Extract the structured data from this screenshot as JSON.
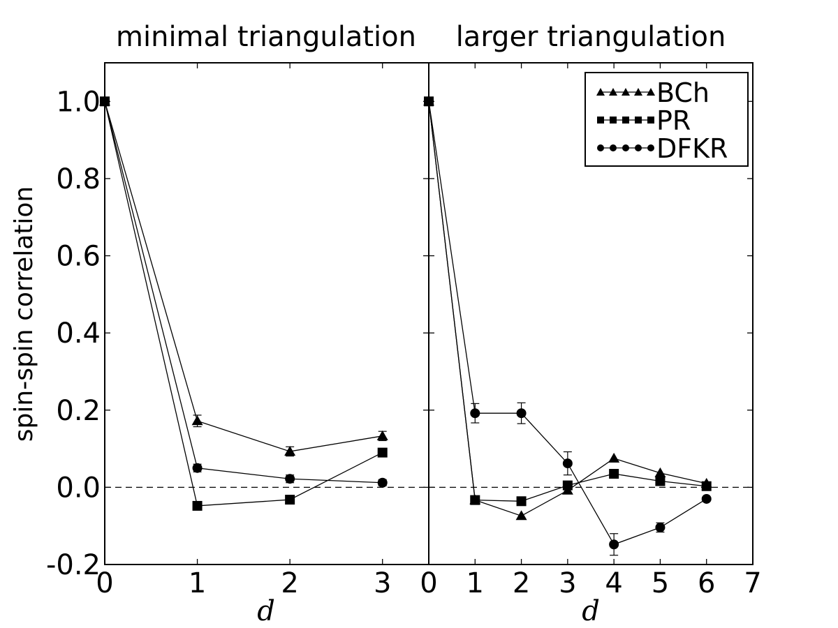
{
  "chart_data": [
    {
      "type": "line",
      "title": "minimal triangulation",
      "xlabel": "d",
      "ylabel": "spin-spin correlation",
      "xlim": [
        0,
        3.5
      ],
      "ylim": [
        -0.2,
        1.1
      ],
      "xticks": [
        "0",
        "1",
        "2",
        "3"
      ],
      "yticks": [
        "-0.2",
        "0.0",
        "0.2",
        "0.4",
        "0.6",
        "0.8",
        "1.0"
      ],
      "reference_line": {
        "y": 0.0,
        "style": "dashed"
      },
      "series": [
        {
          "name": "BCh",
          "marker": "triangle",
          "x": [
            0,
            1,
            2,
            3
          ],
          "y": [
            1.0,
            0.172,
            0.093,
            0.133
          ],
          "err": [
            0,
            0.015,
            0.012,
            0.012
          ]
        },
        {
          "name": "PR",
          "marker": "square",
          "x": [
            0,
            1,
            2,
            3
          ],
          "y": [
            1.0,
            -0.048,
            -0.032,
            0.09
          ],
          "err": [
            0,
            0,
            0,
            0
          ]
        },
        {
          "name": "DFKR",
          "marker": "circle",
          "x": [
            0,
            1,
            2,
            3
          ],
          "y": [
            1.0,
            0.05,
            0.022,
            0.012
          ],
          "err": [
            0,
            0.01,
            0.01,
            0.008
          ]
        }
      ]
    },
    {
      "type": "line",
      "title": "larger triangulation",
      "xlabel": "d",
      "ylabel": "",
      "xlim": [
        0,
        7
      ],
      "ylim": [
        -0.2,
        1.1
      ],
      "xticks": [
        "0",
        "1",
        "2",
        "3",
        "4",
        "5",
        "6",
        "7"
      ],
      "yticks": [],
      "reference_line": {
        "y": 0.0,
        "style": "dashed"
      },
      "legend": {
        "position": "top-right",
        "entries": [
          {
            "label": "BCh",
            "marker": "triangle"
          },
          {
            "label": "PR",
            "marker": "square"
          },
          {
            "label": "DFKR",
            "marker": "circle"
          }
        ]
      },
      "series": [
        {
          "name": "BCh",
          "marker": "triangle",
          "x": [
            0,
            1,
            2,
            3,
            4,
            5,
            6
          ],
          "y": [
            1.0,
            -0.033,
            -0.074,
            -0.008,
            0.075,
            0.037,
            0.01
          ],
          "err": [
            0,
            0,
            0,
            0,
            0,
            0,
            0
          ]
        },
        {
          "name": "PR",
          "marker": "square",
          "x": [
            0,
            1,
            2,
            3,
            4,
            5,
            6
          ],
          "y": [
            1.0,
            -0.033,
            -0.036,
            0.005,
            0.035,
            0.016,
            0.003
          ],
          "err": [
            0,
            0,
            0,
            0,
            0,
            0.01,
            0
          ]
        },
        {
          "name": "DFKR",
          "marker": "circle",
          "x": [
            0,
            1,
            2,
            3,
            4,
            5,
            6
          ],
          "y": [
            1.0,
            0.192,
            0.192,
            0.062,
            -0.148,
            -0.104,
            -0.03
          ],
          "err": [
            0,
            0.025,
            0.027,
            0.03,
            0.028,
            0.012,
            0
          ]
        }
      ]
    }
  ]
}
